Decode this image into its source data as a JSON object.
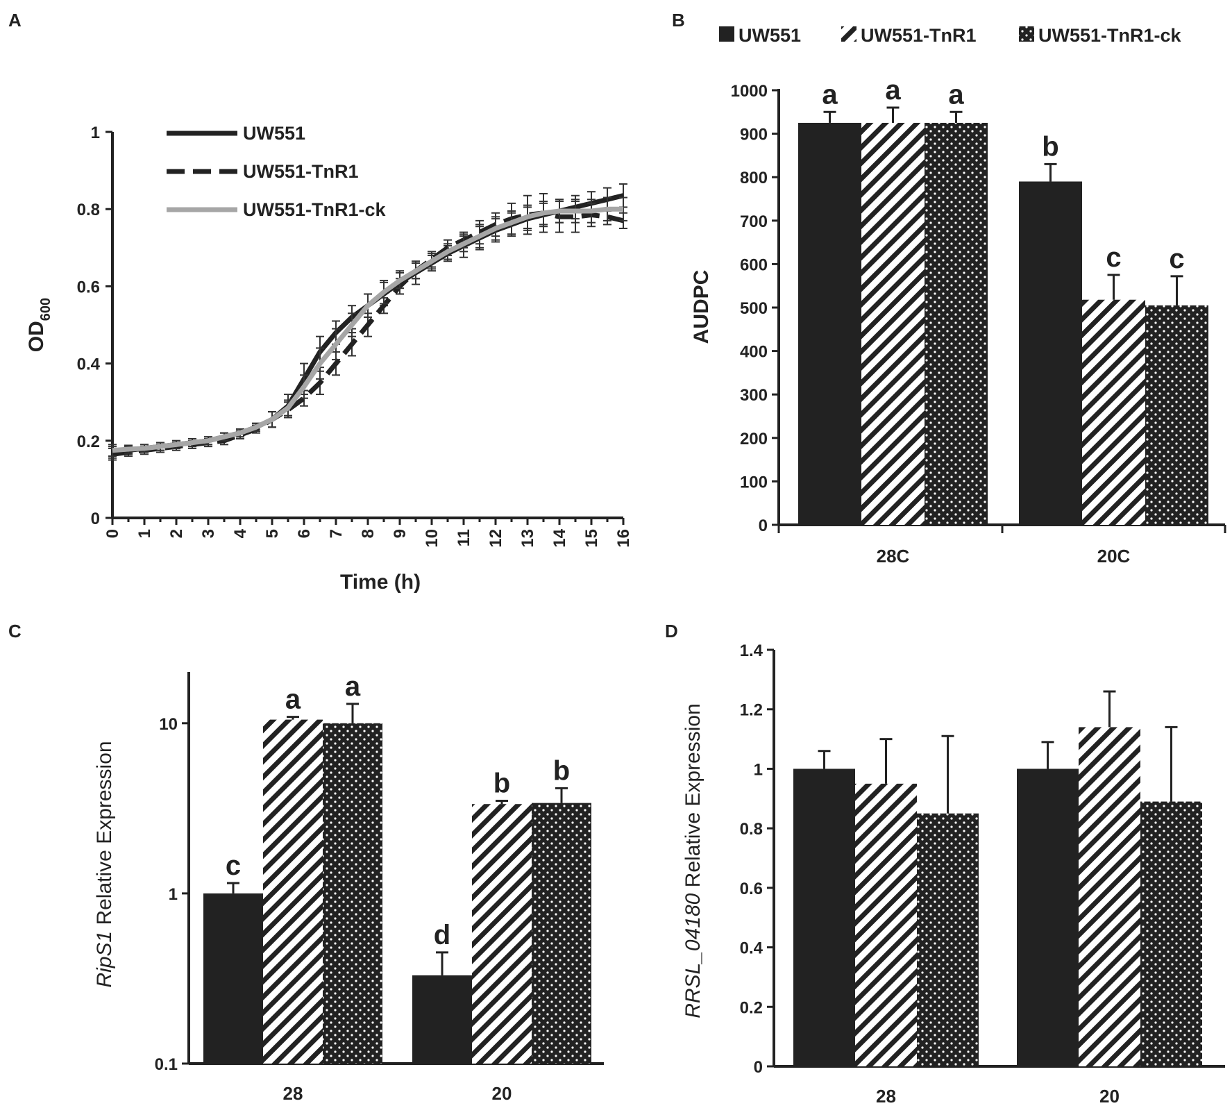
{
  "panels": {
    "A": {
      "label": "A"
    },
    "B": {
      "label": "B"
    },
    "C": {
      "label": "C"
    },
    "D": {
      "label": "D"
    }
  },
  "legend_bars": [
    "UW551",
    "UW551-TnR1",
    "UW551-TnR1-ck"
  ],
  "colors": {
    "ink": "#222222",
    "grey_line": "#a6a6a6"
  },
  "chart_data": [
    {
      "id": "A",
      "type": "line",
      "title": "",
      "xlabel": "Time (h)",
      "ylabel_main": "OD",
      "ylabel_sub": "600",
      "xlim": [
        0,
        16
      ],
      "ylim": [
        0,
        1
      ],
      "x_ticks": [
        "0",
        "1",
        "2",
        "3",
        "4",
        "5",
        "6",
        "7",
        "8",
        "9",
        "10",
        "11",
        "12",
        "13",
        "14",
        "15",
        "16"
      ],
      "y_ticks": [
        "0",
        "0.2",
        "0.4",
        "0.6",
        "0.8",
        "1"
      ],
      "x": [
        0,
        0.5,
        1,
        1.5,
        2,
        2.5,
        3,
        3.5,
        4,
        4.5,
        5,
        5.5,
        6,
        6.5,
        7,
        7.5,
        8,
        8.5,
        9,
        9.5,
        10,
        10.5,
        11,
        11.5,
        12,
        12.5,
        13,
        13.5,
        14,
        14.5,
        15,
        15.5,
        16
      ],
      "series": [
        {
          "name": "UW551",
          "style": "solid-black",
          "values": [
            0.17,
            0.175,
            0.18,
            0.185,
            0.19,
            0.195,
            0.2,
            0.21,
            0.22,
            0.235,
            0.255,
            0.29,
            0.36,
            0.43,
            0.48,
            0.52,
            0.55,
            0.58,
            0.61,
            0.635,
            0.66,
            0.685,
            0.705,
            0.725,
            0.745,
            0.76,
            0.775,
            0.785,
            0.795,
            0.805,
            0.815,
            0.825,
            0.835
          ],
          "errors": [
            0.015,
            0.01,
            0.01,
            0.01,
            0.01,
            0.01,
            0.01,
            0.01,
            0.01,
            0.01,
            0.02,
            0.03,
            0.04,
            0.04,
            0.03,
            0.03,
            0.03,
            0.03,
            0.03,
            0.03,
            0.02,
            0.02,
            0.03,
            0.03,
            0.03,
            0.03,
            0.03,
            0.03,
            0.03,
            0.03,
            0.03,
            0.03,
            0.03
          ]
        },
        {
          "name": "UW551-TnR1",
          "style": "dashed-black",
          "values": [
            0.165,
            0.17,
            0.175,
            0.18,
            0.185,
            0.19,
            0.195,
            0.2,
            0.215,
            0.23,
            0.255,
            0.28,
            0.31,
            0.35,
            0.4,
            0.45,
            0.5,
            0.55,
            0.6,
            0.64,
            0.67,
            0.7,
            0.72,
            0.74,
            0.76,
            0.775,
            0.785,
            0.79,
            0.78,
            0.78,
            0.785,
            0.78,
            0.77
          ],
          "errors": [
            0.015,
            0.01,
            0.01,
            0.01,
            0.01,
            0.01,
            0.01,
            0.01,
            0.01,
            0.01,
            0.02,
            0.02,
            0.02,
            0.03,
            0.03,
            0.03,
            0.03,
            0.02,
            0.02,
            0.02,
            0.02,
            0.02,
            0.02,
            0.03,
            0.03,
            0.04,
            0.05,
            0.05,
            0.04,
            0.04,
            0.03,
            0.02,
            0.02
          ]
        },
        {
          "name": "UW551-TnR1-ck",
          "style": "solid-grey",
          "values": [
            0.175,
            0.178,
            0.18,
            0.185,
            0.19,
            0.195,
            0.2,
            0.21,
            0.22,
            0.235,
            0.255,
            0.285,
            0.34,
            0.4,
            0.45,
            0.5,
            0.55,
            0.585,
            0.615,
            0.64,
            0.665,
            0.69,
            0.71,
            0.73,
            0.75,
            0.765,
            0.78,
            0.79,
            0.795,
            0.795,
            0.795,
            0.8,
            0.8
          ],
          "errors": [
            0.015,
            0.01,
            0.01,
            0.01,
            0.01,
            0.01,
            0.01,
            0.01,
            0.01,
            0.01,
            0.02,
            0.02,
            0.03,
            0.04,
            0.04,
            0.03,
            0.03,
            0.03,
            0.02,
            0.02,
            0.02,
            0.02,
            0.02,
            0.03,
            0.03,
            0.03,
            0.03,
            0.03,
            0.03,
            0.03,
            0.03,
            0.03,
            0.03
          ]
        }
      ]
    },
    {
      "id": "B",
      "type": "bar",
      "title": "",
      "xlabel": "",
      "ylabel": "AUDPC",
      "ylim": [
        0,
        1000
      ],
      "y_ticks": [
        "0",
        "100",
        "200",
        "300",
        "400",
        "500",
        "600",
        "700",
        "800",
        "900",
        "1000"
      ],
      "categories": [
        "28C",
        "20C"
      ],
      "series": [
        {
          "name": "UW551",
          "pattern": "solid",
          "values": [
            925,
            790
          ],
          "errors": [
            25,
            40
          ],
          "letters": [
            "a",
            "b"
          ]
        },
        {
          "name": "UW551-TnR1",
          "pattern": "hatch",
          "values": [
            925,
            518
          ],
          "errors": [
            35,
            57
          ],
          "letters": [
            "a",
            "c"
          ]
        },
        {
          "name": "UW551-TnR1-ck",
          "pattern": "dots",
          "values": [
            925,
            505
          ],
          "errors": [
            25,
            67
          ],
          "letters": [
            "a",
            "c"
          ]
        }
      ]
    },
    {
      "id": "C",
      "type": "bar",
      "scale": "log",
      "title": "",
      "xlabel": "",
      "ylabel_gene": "RipS1",
      "ylabel_rest": " Relative Expression",
      "ylim": [
        0.1,
        20
      ],
      "y_ticks": [
        "0.1",
        "1",
        "10"
      ],
      "categories": [
        "28",
        "20"
      ],
      "series": [
        {
          "name": "UW551",
          "pattern": "solid",
          "values": [
            1.0,
            0.33
          ],
          "errors": [
            0.15,
            0.12
          ],
          "letters": [
            "c",
            "d"
          ]
        },
        {
          "name": "UW551-TnR1",
          "pattern": "hatch",
          "values": [
            10.5,
            3.35
          ],
          "errors": [
            0.4,
            0.15
          ],
          "letters": [
            "a",
            "b"
          ]
        },
        {
          "name": "UW551-TnR1-ck",
          "pattern": "dots",
          "values": [
            10.0,
            3.4
          ],
          "errors": [
            3.0,
            0.75
          ],
          "letters": [
            "a",
            "b"
          ]
        }
      ]
    },
    {
      "id": "D",
      "type": "bar",
      "title": "",
      "xlabel": "",
      "ylabel_gene": "RRSL_04180",
      "ylabel_rest": " Relative Expression",
      "ylim": [
        0,
        1.4
      ],
      "y_ticks": [
        "0",
        "0.2",
        "0.4",
        "0.6",
        "0.8",
        "1",
        "1.2",
        "1.4"
      ],
      "categories": [
        "28",
        "20"
      ],
      "series": [
        {
          "name": "UW551",
          "pattern": "solid",
          "values": [
            1.0,
            1.0
          ],
          "errors": [
            0.06,
            0.09
          ],
          "letters": [
            "",
            ""
          ]
        },
        {
          "name": "UW551-TnR1",
          "pattern": "hatch",
          "values": [
            0.95,
            1.14
          ],
          "errors": [
            0.15,
            0.12
          ],
          "letters": [
            "",
            ""
          ]
        },
        {
          "name": "UW551-TnR1-ck",
          "pattern": "dots",
          "values": [
            0.85,
            0.89
          ],
          "errors": [
            0.26,
            0.25
          ],
          "letters": [
            "",
            ""
          ]
        }
      ]
    }
  ]
}
